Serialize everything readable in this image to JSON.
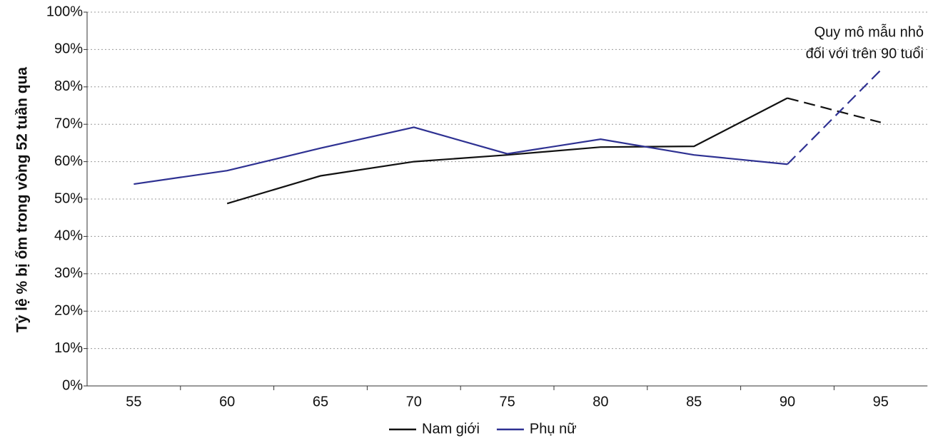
{
  "chart_data": {
    "type": "line",
    "y_label": "Tỷ lệ % bị ốm trong vòng 52 tuần qua",
    "annotation": [
      "Quy mô mẫu nhỏ",
      "đối với trên 90 tuổi"
    ],
    "categories": [
      "55",
      "60",
      "65",
      "70",
      "75",
      "80",
      "85",
      "90",
      "95"
    ],
    "series": [
      {
        "name": "Nam giới",
        "color": "#111111",
        "dash_from": 7,
        "values": [
          null,
          48.8,
          56.2,
          60,
          61.8,
          63.9,
          64.1,
          77,
          70.5
        ]
      },
      {
        "name": "Phụ nữ",
        "color": "#2e3192",
        "dash_from": 7,
        "values": [
          54,
          57.6,
          63.6,
          69.2,
          62.1,
          66,
          61.8,
          59.3,
          84.5
        ]
      }
    ],
    "ylim": [
      0,
      100
    ],
    "yticks": [
      {
        "value": 0,
        "label": "0%"
      },
      {
        "value": 10,
        "label": "10%"
      },
      {
        "value": 20,
        "label": "20%"
      },
      {
        "value": 30,
        "label": "30%"
      },
      {
        "value": 40,
        "label": "40%"
      },
      {
        "value": 50,
        "label": "50%"
      },
      {
        "value": 60,
        "label": "60%"
      },
      {
        "value": 70,
        "label": "70%"
      },
      {
        "value": 80,
        "label": "80%"
      },
      {
        "value": 90,
        "label": "90%"
      },
      {
        "value": 100,
        "label": "100%"
      }
    ],
    "grid": true,
    "legend": "bottom"
  }
}
